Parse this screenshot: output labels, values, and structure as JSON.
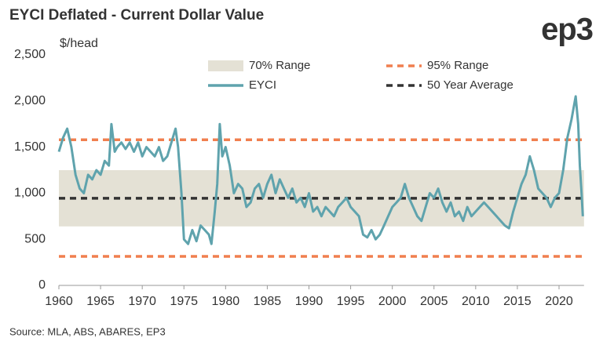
{
  "chart_data": {
    "type": "line",
    "title": "EYCI Deflated - Current Dollar Value",
    "brand": "ep3",
    "y_label": "$/head",
    "source": "Source: MLA, ABS, ABARES, EP3",
    "x": [
      1960,
      1960.5,
      1961,
      1961.5,
      1962,
      1962.5,
      1963,
      1963.5,
      1964,
      1964.5,
      1965,
      1965.5,
      1966,
      1966.3,
      1966.7,
      1967,
      1967.5,
      1968,
      1968.5,
      1969,
      1969.5,
      1970,
      1970.5,
      1971,
      1971.5,
      1972,
      1972.5,
      1973,
      1973.5,
      1974,
      1974.3,
      1974.7,
      1975,
      1975.5,
      1976,
      1976.5,
      1977,
      1977.5,
      1978,
      1978.3,
      1978.7,
      1979,
      1979.3,
      1979.6,
      1980,
      1980.5,
      1981,
      1981.5,
      1982,
      1982.5,
      1983,
      1983.5,
      1984,
      1984.5,
      1985,
      1985.5,
      1986,
      1986.5,
      1987,
      1987.5,
      1988,
      1988.5,
      1989,
      1989.5,
      1990,
      1990.5,
      1991,
      1991.5,
      1992,
      1992.5,
      1993,
      1993.5,
      1994,
      1994.5,
      1995,
      1995.5,
      1996,
      1996.5,
      1997,
      1997.5,
      1998,
      1998.5,
      1999,
      1999.5,
      2000,
      2000.5,
      2001,
      2001.5,
      2002,
      2002.5,
      2003,
      2003.5,
      2004,
      2004.5,
      2005,
      2005.5,
      2006,
      2006.5,
      2007,
      2007.5,
      2008,
      2008.5,
      2009,
      2009.5,
      2010,
      2010.5,
      2011,
      2011.5,
      2012,
      2012.5,
      2013,
      2013.5,
      2014,
      2014.5,
      2015,
      2015.5,
      2016,
      2016.5,
      2017,
      2017.5,
      2018,
      2018.5,
      2019,
      2019.5,
      2020,
      2020.5,
      2021,
      2021.5,
      2022,
      2022.3,
      2022.5,
      2022.7,
      2022.85
    ],
    "series": [
      {
        "name": "EYCI",
        "color": "#5fa3ad",
        "values": [
          1450,
          1600,
          1700,
          1500,
          1200,
          1050,
          1000,
          1200,
          1150,
          1250,
          1200,
          1350,
          1300,
          1750,
          1450,
          1500,
          1550,
          1480,
          1550,
          1450,
          1550,
          1400,
          1500,
          1450,
          1400,
          1500,
          1350,
          1400,
          1550,
          1700,
          1500,
          1000,
          500,
          450,
          600,
          480,
          650,
          600,
          550,
          450,
          800,
          1100,
          1750,
          1400,
          1500,
          1300,
          1000,
          1100,
          1050,
          850,
          900,
          1050,
          1100,
          950,
          1100,
          1200,
          1000,
          1150,
          1050,
          950,
          1050,
          900,
          950,
          850,
          1000,
          800,
          850,
          750,
          850,
          800,
          750,
          850,
          900,
          950,
          850,
          800,
          750,
          550,
          520,
          600,
          500,
          550,
          650,
          750,
          850,
          900,
          950,
          1100,
          950,
          850,
          750,
          700,
          850,
          1000,
          950,
          1050,
          900,
          800,
          900,
          750,
          800,
          700,
          850,
          750,
          800,
          850,
          900,
          850,
          800,
          750,
          700,
          650,
          620,
          800,
          950,
          1100,
          1200,
          1400,
          1250,
          1050,
          1000,
          950,
          850,
          950,
          1000,
          1250,
          1600,
          1800,
          2050,
          1750,
          1300,
          1000,
          750
        ]
      }
    ],
    "bands": [
      {
        "name": "70% Range",
        "color": "#e4e1d5",
        "range": [
          640,
          1250
        ]
      }
    ],
    "reference_lines": [
      {
        "name": "95% Range",
        "color": "#f07f4f",
        "values": [
          1580,
          315
        ]
      },
      {
        "name": "50 Year Average",
        "color": "#333333",
        "values": [
          945
        ]
      }
    ],
    "xlim": [
      1960,
      2023
    ],
    "ylim": [
      0,
      2500
    ],
    "xticks": [
      1960,
      1965,
      1970,
      1975,
      1980,
      1985,
      1990,
      1995,
      2000,
      2005,
      2010,
      2015,
      2020
    ],
    "yticks": [
      0,
      500,
      {
        "value": 1000,
        "label": "1,000"
      },
      {
        "value": 1500,
        "label": "1,500"
      },
      {
        "value": 2000,
        "label": "2,000"
      },
      {
        "value": 2500,
        "label": "2,500"
      }
    ]
  }
}
